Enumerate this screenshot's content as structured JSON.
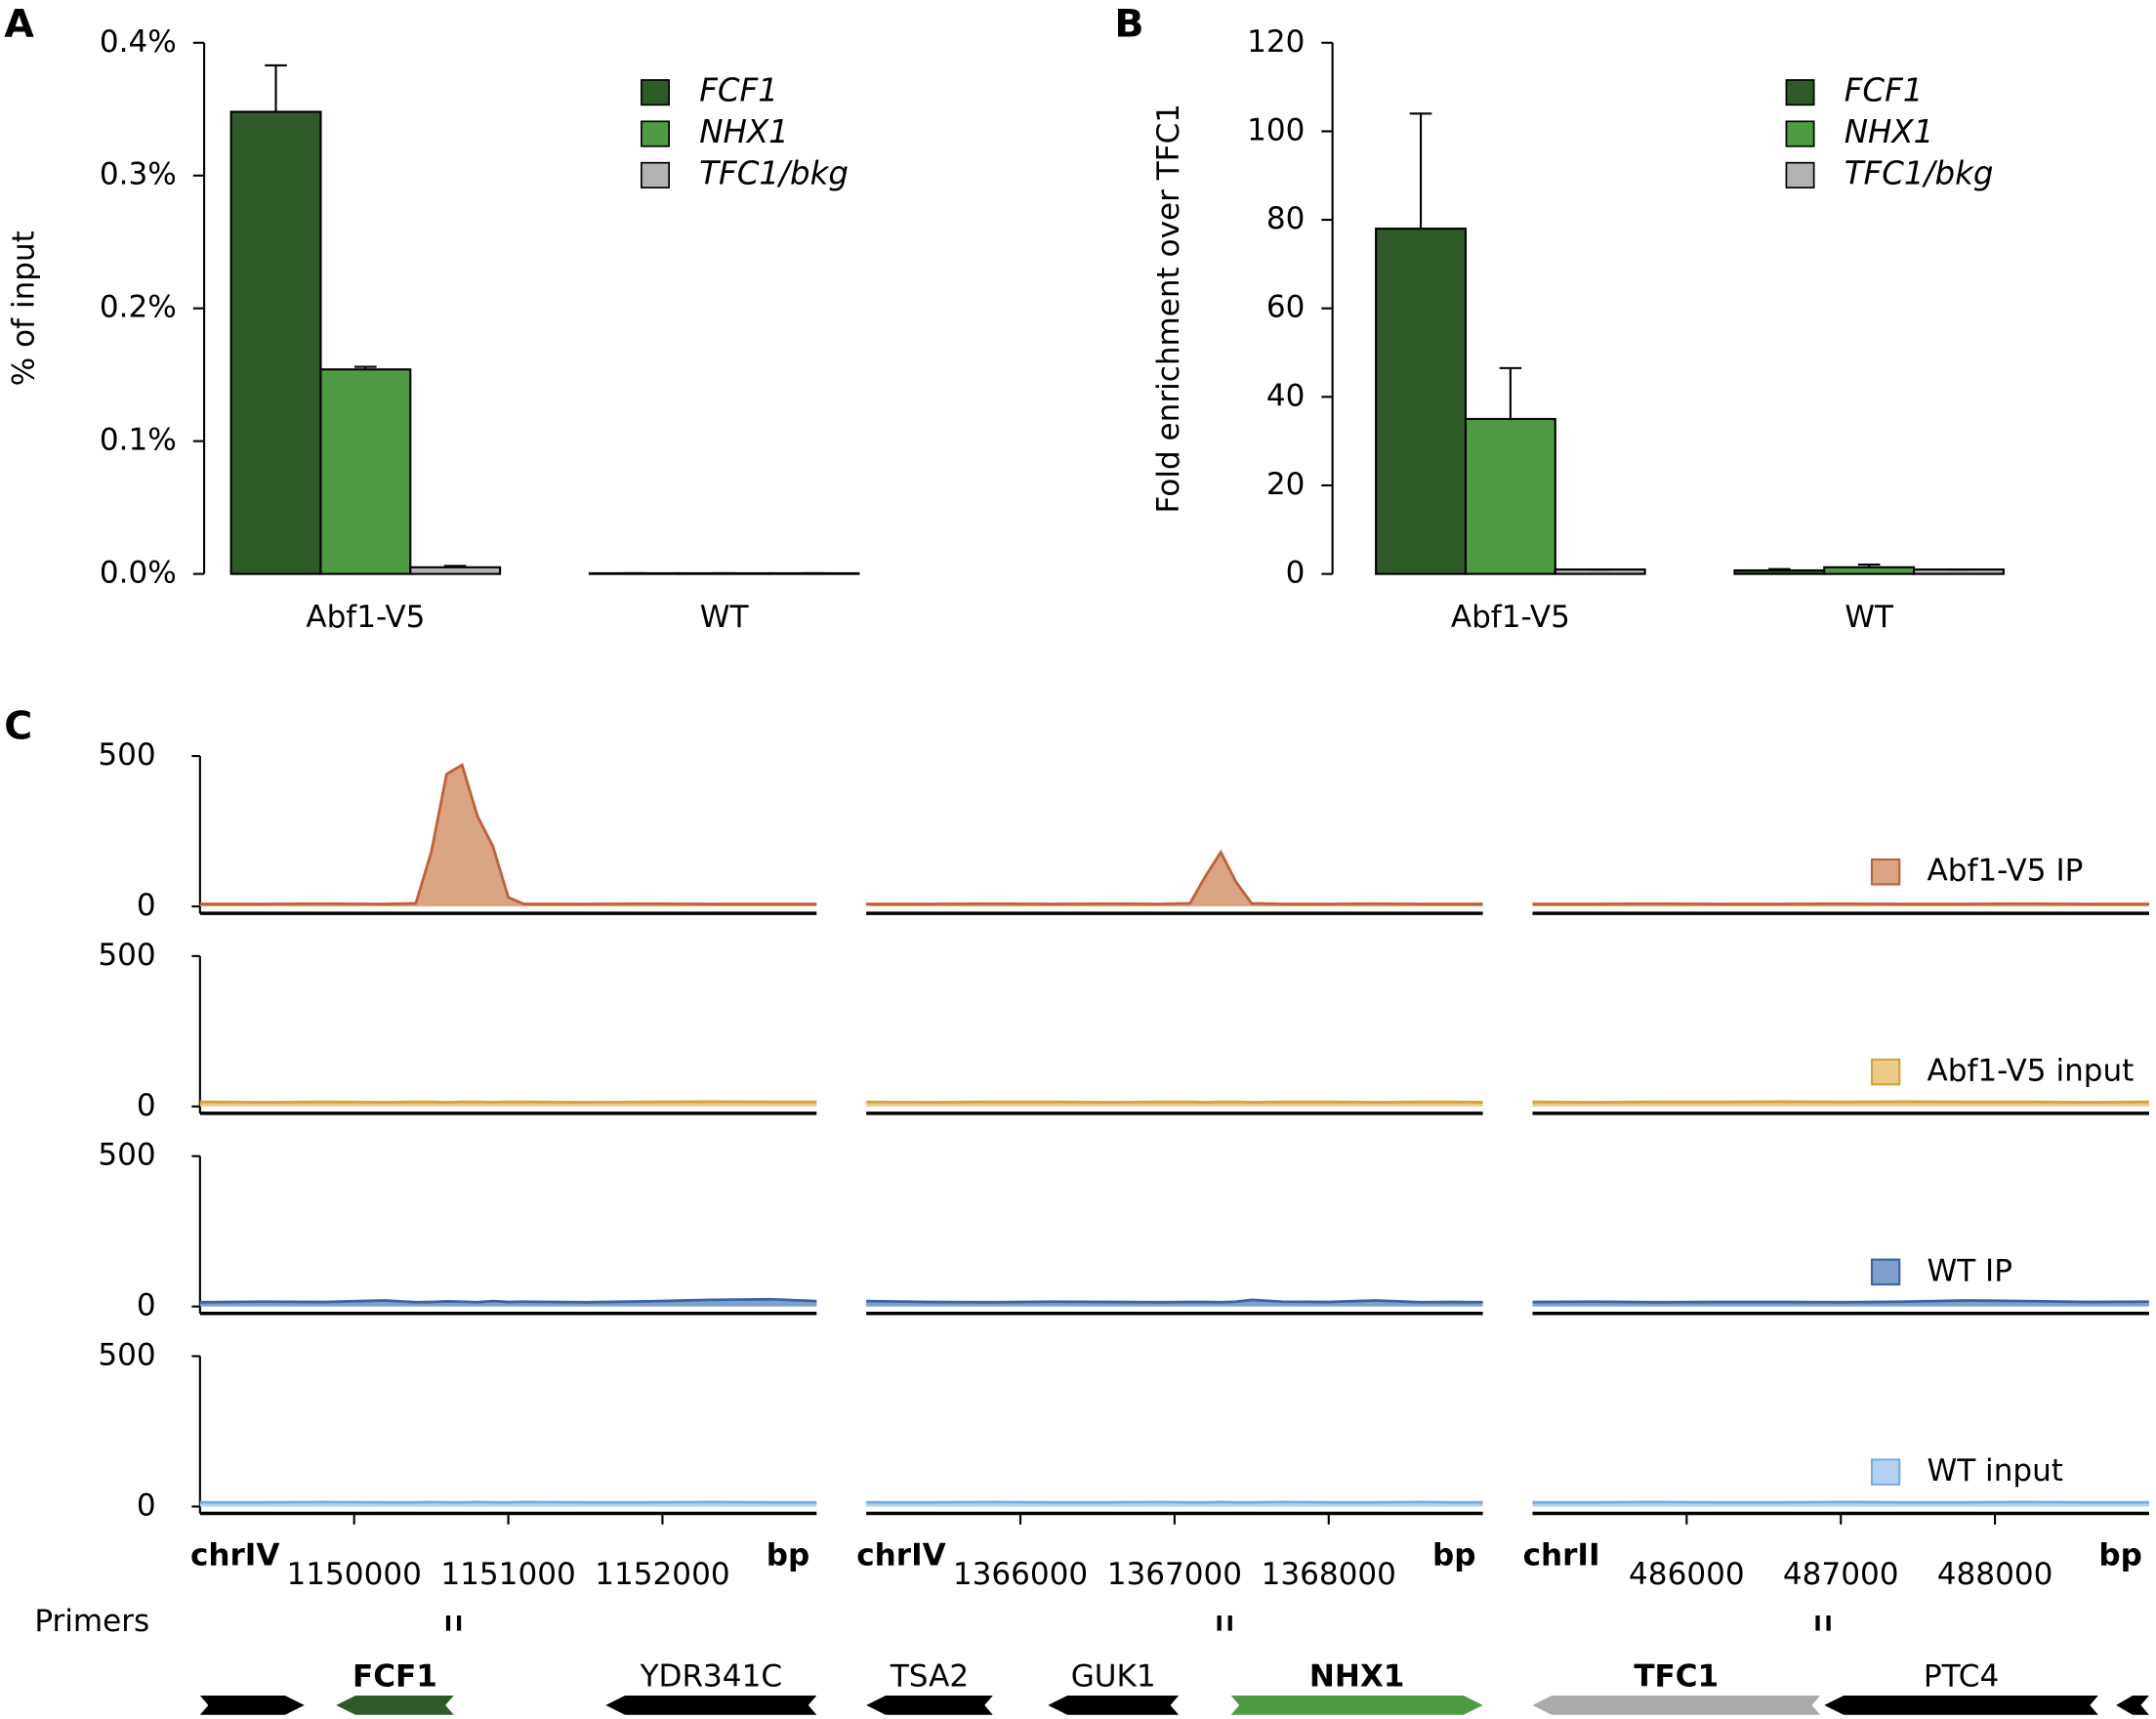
{
  "chart_data": [
    {
      "type": "bar",
      "panel": "A",
      "ylabel": "% of input",
      "categories": [
        "Abf1-V5",
        "WT"
      ],
      "series": [
        {
          "name": "FCF1",
          "color": "#2e5a28",
          "values": [
            0.348,
            0.0005
          ],
          "errors": [
            0.035,
            0
          ]
        },
        {
          "name": "NHX1",
          "color": "#4f9b43",
          "values": [
            0.154,
            0.0005
          ],
          "errors": [
            0.002,
            0
          ]
        },
        {
          "name": "TFC1/bkg",
          "color": "#b3b3b3",
          "values": [
            0.005,
            0.0005
          ],
          "errors": [
            0.001,
            0
          ]
        }
      ],
      "ylim": [
        0,
        0.4
      ],
      "yticks": [
        {
          "value": 0,
          "label": "0.0%"
        },
        {
          "value": 0.1,
          "label": "0.1%"
        },
        {
          "value": 0.2,
          "label": "0.2%"
        },
        {
          "value": 0.3,
          "label": "0.3%"
        },
        {
          "value": 0.4,
          "label": "0.4%"
        }
      ]
    },
    {
      "type": "bar",
      "panel": "B",
      "ylabel": "Fold enrichment over TFC1",
      "categories": [
        "Abf1-V5",
        "WT"
      ],
      "series": [
        {
          "name": "FCF1",
          "color": "#2e5a28",
          "values": [
            78,
            0.8
          ],
          "errors": [
            26,
            0.3
          ]
        },
        {
          "name": "NHX1",
          "color": "#4f9b43",
          "values": [
            35,
            1.5
          ],
          "errors": [
            11.5,
            0.6
          ]
        },
        {
          "name": "TFC1/bkg",
          "color": "#b3b3b3",
          "values": [
            1,
            1
          ],
          "errors": [
            0,
            0
          ]
        }
      ],
      "ylim": [
        0,
        120
      ],
      "yticks": [
        0,
        20,
        40,
        60,
        80,
        100,
        120
      ]
    },
    {
      "type": "track",
      "panel": "C",
      "primers_label": "Primers",
      "ylim": [
        0,
        500
      ],
      "yticks": [
        0,
        500
      ],
      "regions": [
        {
          "chrom": "chrIV",
          "unit": "bp",
          "xlim": [
            1149000,
            1153000
          ],
          "xticks": [
            1150000,
            1151000,
            1152000
          ],
          "x": [
            1149000,
            1149400,
            1149800,
            1150200,
            1150400,
            1150500,
            1150600,
            1150700,
            1150800,
            1150900,
            1151000,
            1151100,
            1151500,
            1151900,
            1152300,
            1152700,
            1153000
          ],
          "primers": [
            1150610,
            1150680
          ],
          "genes": [
            {
              "name": null,
              "start": 1149000,
              "end": 1149677,
              "strand": "+",
              "color": "#000000",
              "bold": false
            },
            {
              "name": "FCF1",
              "start": 1149883,
              "end": 1150646,
              "strand": "-",
              "color": "#2e5a28",
              "bold": true
            },
            {
              "name": "YDR341C",
              "start": 1151632,
              "end": 1153000,
              "strand": "-",
              "color": "#000000",
              "bold": false
            }
          ]
        },
        {
          "chrom": "chrIV",
          "unit": "bp",
          "xlim": [
            1365000,
            1369000
          ],
          "xticks": [
            1366000,
            1367000,
            1368000
          ],
          "x": [
            1365000,
            1365400,
            1365800,
            1366200,
            1366600,
            1366900,
            1367100,
            1367200,
            1367300,
            1367400,
            1367500,
            1367700,
            1368000,
            1368300,
            1368600,
            1368800,
            1369000
          ],
          "primers": [
            1367290,
            1367360
          ],
          "genes": [
            {
              "name": "TSA2",
              "start": 1365000,
              "end": 1365821,
              "strand": "-",
              "color": "#000000",
              "bold": false
            },
            {
              "name": "GUK1",
              "start": 1366179,
              "end": 1367027,
              "strand": "-",
              "color": "#000000",
              "bold": false
            },
            {
              "name": "NHX1",
              "start": 1367366,
              "end": 1369000,
              "strand": "+",
              "color": "#4f9b43",
              "bold": true
            }
          ]
        },
        {
          "chrom": "chrII",
          "unit": "bp",
          "xlim": [
            485000,
            489000
          ],
          "xticks": [
            486000,
            487000,
            488000
          ],
          "x": [
            485000,
            485400,
            485800,
            486200,
            486600,
            487000,
            487400,
            487800,
            488200,
            488600,
            489000
          ],
          "primers": [
            486850,
            486920
          ],
          "genes": [
            {
              "name": "TFC1",
              "start": 485000,
              "end": 486866,
              "strand": "-",
              "color": "#aaaaaa",
              "bold": true
            },
            {
              "name": "PTC4",
              "start": 486893,
              "end": 488670,
              "strand": "-",
              "color": "#000000",
              "bold": false
            },
            {
              "name": null,
              "start": 488786,
              "end": 489000,
              "strand": "-",
              "color": "#000000",
              "bold": false
            }
          ]
        }
      ],
      "series": [
        {
          "name": "Abf1-V5 IP",
          "color": "#c2603a",
          "fill": "#d9a583",
          "values": [
            [
              8,
              8,
              9,
              8,
              10,
              180,
              440,
              470,
              300,
              200,
              30,
              8,
              8,
              9,
              8,
              8,
              8
            ],
            [
              8,
              8,
              9,
              8,
              9,
              8,
              10,
              100,
              180,
              80,
              10,
              8,
              8,
              9,
              8,
              8,
              8
            ],
            [
              8,
              8,
              9,
              8,
              8,
              9,
              8,
              8,
              9,
              8,
              8
            ]
          ]
        },
        {
          "name": "Abf1-V5 input",
          "color": "#d4a43a",
          "fill": "#ebcb87",
          "values": [
            [
              15,
              14,
              15,
              14,
              15,
              15,
              14,
              15,
              15,
              14,
              15,
              15,
              14,
              15,
              16,
              15,
              15
            ],
            [
              15,
              14,
              15,
              15,
              14,
              15,
              15,
              14,
              15,
              15,
              14,
              15,
              15,
              14,
              15,
              15,
              14
            ],
            [
              15,
              14,
              15,
              15,
              16,
              15,
              16,
              15,
              15,
              14,
              15
            ]
          ]
        },
        {
          "name": "WT IP",
          "color": "#3b63a9",
          "fill": "#7f9fcd",
          "values": [
            [
              14,
              16,
              15,
              20,
              14,
              15,
              17,
              16,
              14,
              18,
              15,
              16,
              14,
              17,
              22,
              24,
              18
            ],
            [
              18,
              15,
              14,
              16,
              15,
              14,
              15,
              15,
              14,
              16,
              22,
              16,
              15,
              20,
              14,
              15,
              14
            ],
            [
              15,
              16,
              14,
              15,
              15,
              14,
              16,
              20,
              18,
              15,
              16
            ]
          ]
        },
        {
          "name": "WT input",
          "color": "#78ade2",
          "fill": "#b3d2f2",
          "values": [
            [
              14,
              14,
              15,
              14,
              14,
              15,
              14,
              14,
              15,
              14,
              14,
              15,
              14,
              14,
              15,
              14,
              14
            ],
            [
              14,
              14,
              15,
              14,
              14,
              15,
              14,
              14,
              15,
              14,
              14,
              15,
              14,
              14,
              15,
              14,
              14
            ],
            [
              14,
              14,
              15,
              14,
              14,
              15,
              14,
              14,
              15,
              14,
              14
            ]
          ]
        }
      ]
    }
  ]
}
